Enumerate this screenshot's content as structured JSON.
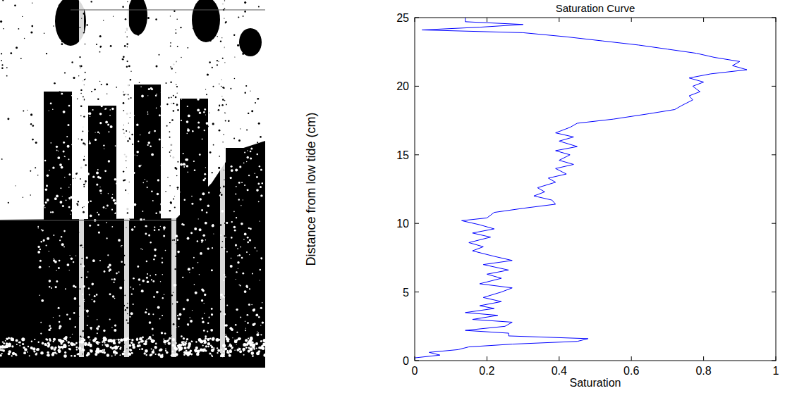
{
  "chart_data": {
    "type": "line",
    "title": "Saturation Curve",
    "x_label": "Saturation",
    "y_label": "Distance from low tide (cm)",
    "x": [
      0.0,
      0.07,
      0.04,
      0.12,
      0.15,
      0.27,
      0.45,
      0.48,
      0.26,
      0.26,
      0.14,
      0.25,
      0.27,
      0.16,
      0.23,
      0.14,
      0.22,
      0.18,
      0.24,
      0.19,
      0.24,
      0.27,
      0.18,
      0.24,
      0.2,
      0.26,
      0.19,
      0.27,
      0.22,
      0.16,
      0.19,
      0.15,
      0.21,
      0.16,
      0.22,
      0.18,
      0.13,
      0.2,
      0.22,
      0.3,
      0.39,
      0.38,
      0.33,
      0.36,
      0.34,
      0.39,
      0.37,
      0.42,
      0.39,
      0.44,
      0.4,
      0.43,
      0.39,
      0.45,
      0.4,
      0.44,
      0.39,
      0.43,
      0.45,
      0.55,
      0.65,
      0.72,
      0.74,
      0.77,
      0.76,
      0.79,
      0.77,
      0.8,
      0.76,
      0.82,
      0.92,
      0.88,
      0.9,
      0.83,
      0.78,
      0.7,
      0.62,
      0.52,
      0.42,
      0.3,
      0.02,
      0.18,
      0.3,
      0.14,
      0.14
    ],
    "values": [
      0.2,
      0.4,
      0.6,
      0.8,
      1.0,
      1.2,
      1.4,
      1.6,
      1.8,
      2.0,
      2.2,
      2.5,
      2.8,
      3.0,
      3.3,
      3.5,
      3.8,
      4.0,
      4.3,
      4.6,
      5.0,
      5.3,
      5.6,
      6.0,
      6.3,
      6.6,
      7.0,
      7.3,
      7.6,
      8.0,
      8.3,
      8.6,
      9.0,
      9.3,
      9.6,
      9.9,
      10.2,
      10.4,
      10.8,
      11.1,
      11.4,
      11.7,
      12.0,
      12.3,
      12.6,
      13.0,
      13.3,
      13.6,
      14.0,
      14.3,
      14.6,
      15.0,
      15.3,
      15.6,
      16.0,
      16.3,
      16.6,
      17.0,
      17.3,
      17.6,
      18.0,
      18.3,
      18.6,
      19.0,
      19.3,
      19.6,
      20.0,
      20.3,
      20.6,
      20.9,
      21.2,
      21.5,
      21.8,
      22.1,
      22.4,
      22.7,
      23.0,
      23.3,
      23.6,
      23.9,
      24.1,
      24.3,
      24.5,
      24.7,
      25.0
    ],
    "color": "#0000ff",
    "xlim": [
      0,
      1
    ],
    "xticks": [
      0,
      0.2,
      0.4,
      0.6,
      0.8,
      1
    ],
    "ylim": [
      0,
      25
    ],
    "yticks": [
      0,
      5,
      10,
      15,
      20,
      25
    ],
    "grid": false
  }
}
